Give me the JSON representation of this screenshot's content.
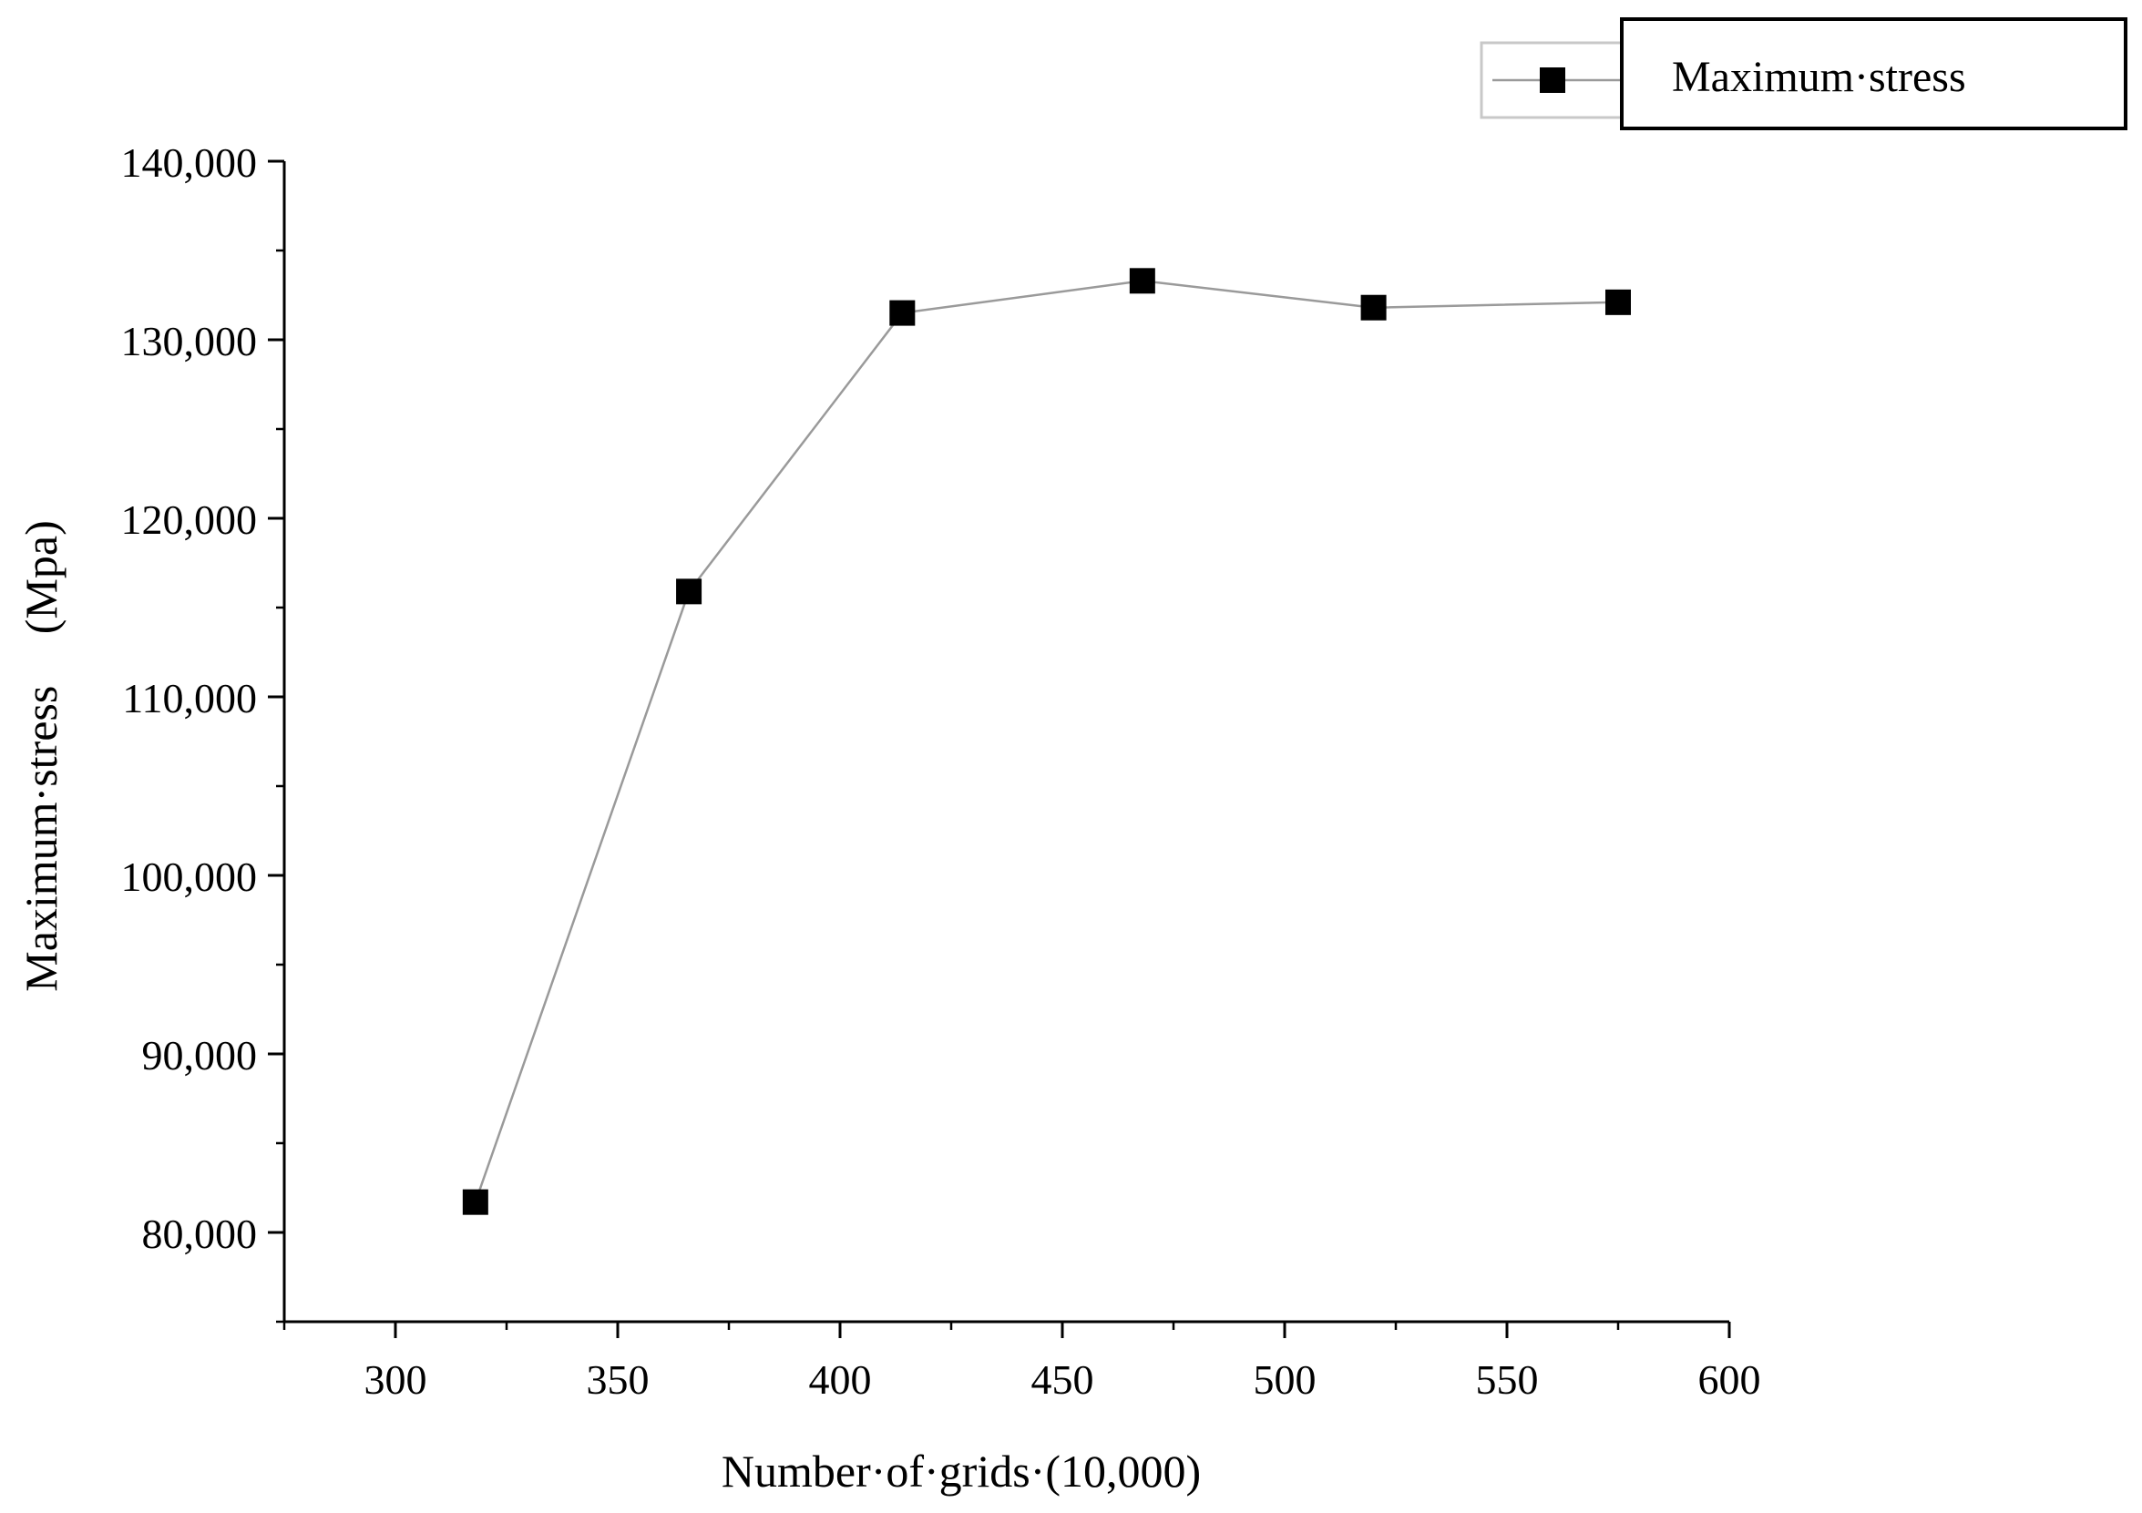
{
  "chart_data": {
    "type": "line",
    "title": "",
    "xlabel": "Number·of·grids·(10,000)",
    "ylabel_main": "Maximum·stress",
    "ylabel_unit": "(Mpa)",
    "xlim": [
      275,
      600
    ],
    "ylim": [
      75000,
      140000
    ],
    "x_ticks": [
      300,
      350,
      400,
      450,
      500,
      550,
      600
    ],
    "x_tick_labels": [
      "300",
      "350",
      "400",
      "450",
      "500",
      "550",
      "600"
    ],
    "y_ticks": [
      80000,
      90000,
      100000,
      110000,
      120000,
      130000,
      140000
    ],
    "y_tick_labels": [
      "80,000",
      "90,000",
      "100,000",
      "110,000",
      "120,000",
      "130,000",
      "140,000"
    ],
    "grid": false,
    "legend_position": "top-right",
    "series": [
      {
        "name": "Maximum·stress",
        "marker": "square",
        "line_color": "#9a9a9a",
        "marker_color": "#000000",
        "x": [
          318,
          366,
          414,
          468,
          520,
          575
        ],
        "y": [
          81700,
          115900,
          131500,
          133300,
          131800,
          132100
        ]
      }
    ]
  }
}
